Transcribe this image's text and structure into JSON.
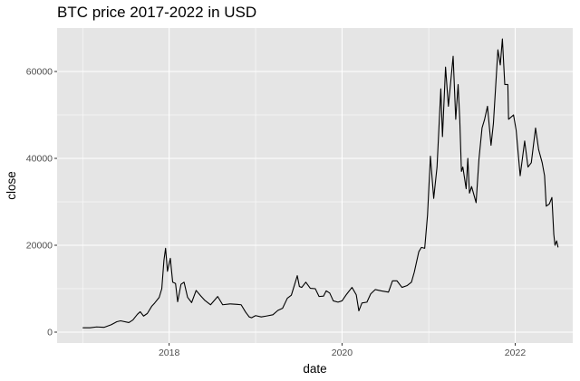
{
  "chart_data": {
    "type": "line",
    "title": "BTC price 2017-2022 in USD",
    "xlabel": "date",
    "ylabel": "close",
    "x_ticks": [
      "2018",
      "2020",
      "2022"
    ],
    "y_ticks": [
      "0",
      "20000",
      "40000",
      "60000"
    ],
    "xlim": [
      "2016-09-15",
      "2022-09-01"
    ],
    "ylim": [
      -2500,
      70000
    ],
    "grid": true,
    "background": "#e5e5e5",
    "grid_color": "#ffffff",
    "line_color": "#000000",
    "series": [
      {
        "x": [
          "2017-01-01",
          "2017-02-01",
          "2017-03-01",
          "2017-04-01",
          "2017-05-01",
          "2017-05-25",
          "2017-06-10",
          "2017-07-15",
          "2017-08-01",
          "2017-08-20",
          "2017-09-01",
          "2017-09-15",
          "2017-10-01",
          "2017-10-20",
          "2017-11-01",
          "2017-11-20",
          "2017-12-01",
          "2017-12-10",
          "2017-12-17",
          "2017-12-25",
          "2018-01-06",
          "2018-01-16",
          "2018-01-28",
          "2018-02-06",
          "2018-02-20",
          "2018-03-05",
          "2018-03-20",
          "2018-04-06",
          "2018-04-25",
          "2018-05-15",
          "2018-06-01",
          "2018-06-25",
          "2018-07-25",
          "2018-08-15",
          "2018-09-15",
          "2018-10-15",
          "2018-11-01",
          "2018-11-20",
          "2018-12-05",
          "2018-12-15",
          "2019-01-01",
          "2019-01-25",
          "2019-02-15",
          "2019-03-15",
          "2019-04-05",
          "2019-04-25",
          "2019-05-15",
          "2019-06-01",
          "2019-06-15",
          "2019-06-26",
          "2019-07-05",
          "2019-07-15",
          "2019-08-01",
          "2019-08-20",
          "2019-09-10",
          "2019-09-26",
          "2019-10-15",
          "2019-10-26",
          "2019-11-10",
          "2019-11-25",
          "2019-12-15",
          "2020-01-01",
          "2020-01-20",
          "2020-02-12",
          "2020-03-01",
          "2020-03-12",
          "2020-03-25",
          "2020-04-15",
          "2020-05-01",
          "2020-05-20",
          "2020-06-15",
          "2020-07-15",
          "2020-08-01",
          "2020-08-20",
          "2020-09-10",
          "2020-10-01",
          "2020-10-20",
          "2020-11-01",
          "2020-11-20",
          "2020-12-01",
          "2020-12-15",
          "2020-12-27",
          "2021-01-08",
          "2021-01-22",
          "2021-02-05",
          "2021-02-21",
          "2021-02-28",
          "2021-03-13",
          "2021-03-25",
          "2021-04-14",
          "2021-04-25",
          "2021-05-05",
          "2021-05-12",
          "2021-05-19",
          "2021-05-25",
          "2021-06-08",
          "2021-06-15",
          "2021-06-22",
          "2021-07-01",
          "2021-07-20",
          "2021-08-01",
          "2021-08-14",
          "2021-08-25",
          "2021-09-06",
          "2021-09-21",
          "2021-10-01",
          "2021-10-20",
          "2021-10-30",
          "2021-11-08",
          "2021-11-18",
          "2021-12-01",
          "2021-12-04",
          "2021-12-25",
          "2022-01-05",
          "2022-01-22",
          "2022-02-10",
          "2022-02-24",
          "2022-03-10",
          "2022-03-28",
          "2022-04-10",
          "2022-04-25",
          "2022-05-05",
          "2022-05-12",
          "2022-05-25",
          "2022-06-05",
          "2022-06-13",
          "2022-06-18",
          "2022-06-25",
          "2022-07-01"
        ],
        "values": [
          1000,
          1000,
          1200,
          1100,
          1700,
          2400,
          2600,
          2200,
          2800,
          4100,
          4700,
          3700,
          4300,
          6000,
          6700,
          8000,
          10000,
          16500,
          19300,
          14000,
          17000,
          11500,
          11200,
          7000,
          11000,
          11500,
          8000,
          6800,
          9600,
          8300,
          7300,
          6300,
          8200,
          6300,
          6500,
          6400,
          6300,
          4600,
          3500,
          3300,
          3800,
          3500,
          3700,
          4000,
          5000,
          5500,
          7800,
          8500,
          11000,
          13000,
          10500,
          10300,
          11500,
          10100,
          10000,
          8200,
          8300,
          9500,
          9000,
          7200,
          6900,
          7200,
          8700,
          10300,
          8600,
          4900,
          6700,
          6900,
          8800,
          9800,
          9500,
          9200,
          11800,
          11800,
          10300,
          10700,
          11500,
          13800,
          18500,
          19500,
          19300,
          27000,
          40500,
          30800,
          38000,
          56000,
          45000,
          61000,
          52000,
          63500,
          49000,
          57000,
          49000,
          37000,
          38000,
          33000,
          40000,
          32000,
          33500,
          29800,
          39800,
          47000,
          49000,
          52000,
          43000,
          48000,
          65000,
          61500,
          67500,
          57000,
          57000,
          49000,
          50000,
          46500,
          36000,
          44000,
          38000,
          39000,
          47000,
          42000,
          39000,
          36000,
          29000,
          29500,
          31000,
          22500,
          20000,
          21000,
          19500
        ]
      }
    ]
  }
}
